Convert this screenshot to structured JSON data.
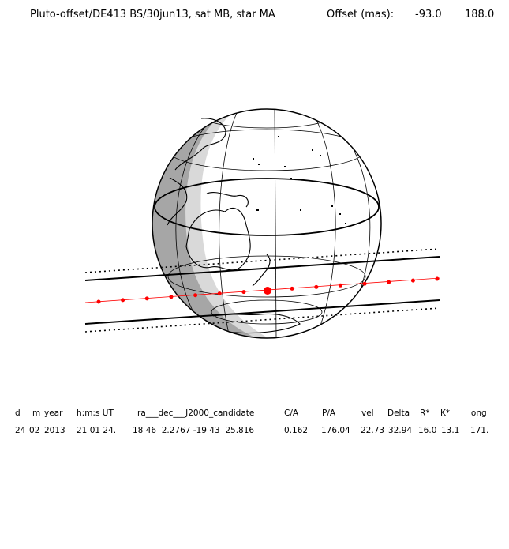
{
  "header": {
    "title": "Pluto-offset/DE413 BS/30jun13, sat MB, star MA",
    "offset_label": "Offset (mas):",
    "offset_x": "-93.0",
    "offset_y": "188.0"
  },
  "colors": {
    "night": "#a6a6a6",
    "twilight": "#d9d9d9",
    "day": "#ffffff",
    "chord": "#ff0000",
    "line": "#000000"
  },
  "table": {
    "headers": [
      "d",
      "m",
      "year",
      "h:m:s UT",
      "ra___dec___J2000_candidate",
      "C/A",
      "P/A",
      "vel",
      "Delta",
      "R*",
      "K*",
      "long"
    ],
    "values": [
      "24",
      "02",
      "2013",
      "21 01 24.",
      "18 46  2.2767 -19 43  25.816",
      "0.162",
      "176.04",
      "22.73",
      "32.94",
      "16.0",
      "13.1",
      "171."
    ]
  }
}
